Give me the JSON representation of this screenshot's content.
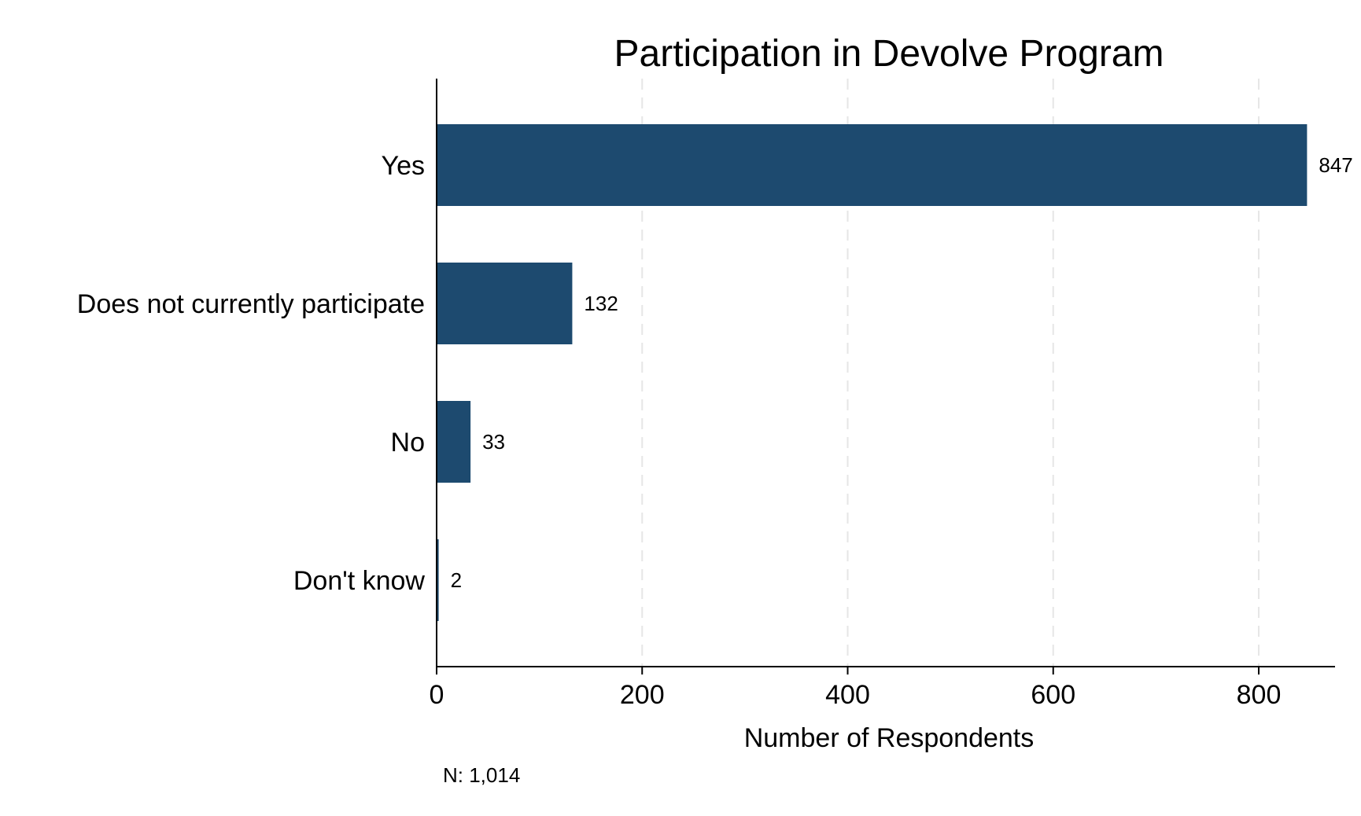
{
  "chart_data": {
    "type": "bar",
    "orientation": "horizontal",
    "title": "Participation in Devolve Program",
    "xlabel": "Number of Respondents",
    "ylabel": "",
    "categories": [
      "Yes",
      "Does not currently participate",
      "No",
      "Don't know"
    ],
    "values": [
      847,
      132,
      33,
      2
    ],
    "value_labels": [
      "847",
      "132",
      "33",
      "2"
    ],
    "xlim": [
      0,
      875
    ],
    "xticks": [
      0,
      200,
      400,
      600,
      800
    ],
    "grid": "vertical dashed",
    "bar_color": "#1d4a6f",
    "note": "N: 1,014"
  }
}
